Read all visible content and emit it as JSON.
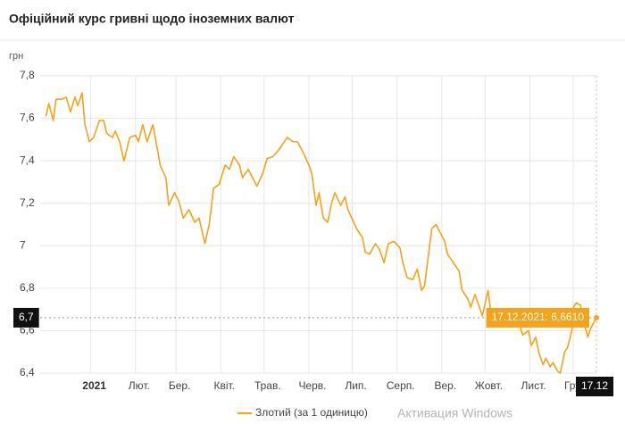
{
  "chart_data": {
    "type": "line",
    "title": "Офіційний курс гривні щодо іноземних валют",
    "y_label": "грн",
    "x": [
      "2020-12-01",
      "2020-12-03",
      "2020-12-06",
      "2020-12-08",
      "2020-12-12",
      "2020-12-15",
      "2020-12-18",
      "2020-12-21",
      "2020-12-23",
      "2020-12-26",
      "2020-12-28",
      "2020-12-31",
      "2021-01-03",
      "2021-01-07",
      "2021-01-10",
      "2021-01-12",
      "2021-01-16",
      "2021-01-18",
      "2021-01-21",
      "2021-01-24",
      "2021-01-28",
      "2021-02-01",
      "2021-02-03",
      "2021-02-06",
      "2021-02-09",
      "2021-02-13",
      "2021-02-16",
      "2021-02-18",
      "2021-02-22",
      "2021-02-24",
      "2021-02-28",
      "2021-03-03",
      "2021-03-06",
      "2021-03-10",
      "2021-03-14",
      "2021-03-17",
      "2021-03-21",
      "2021-03-24",
      "2021-03-27",
      "2021-03-31",
      "2021-04-04",
      "2021-04-07",
      "2021-04-10",
      "2021-04-14",
      "2021-04-16",
      "2021-04-20",
      "2021-04-23",
      "2021-04-26",
      "2021-04-30",
      "2021-05-03",
      "2021-05-07",
      "2021-05-11",
      "2021-05-15",
      "2021-05-17",
      "2021-05-21",
      "2021-05-24",
      "2021-05-28",
      "2021-06-01",
      "2021-06-03",
      "2021-06-06",
      "2021-06-08",
      "2021-06-11",
      "2021-06-14",
      "2021-06-17",
      "2021-06-19",
      "2021-06-23",
      "2021-06-26",
      "2021-06-28",
      "2021-07-02",
      "2021-07-04",
      "2021-07-08",
      "2021-07-10",
      "2021-07-13",
      "2021-07-17",
      "2021-07-20",
      "2021-07-23",
      "2021-07-26",
      "2021-07-30",
      "2021-08-03",
      "2021-08-05",
      "2021-08-08",
      "2021-08-12",
      "2021-08-15",
      "2021-08-18",
      "2021-08-20",
      "2021-08-23",
      "2021-08-25",
      "2021-08-28",
      "2021-08-31",
      "2021-09-03",
      "2021-09-05",
      "2021-09-09",
      "2021-09-13",
      "2021-09-15",
      "2021-09-19",
      "2021-09-21",
      "2021-09-24",
      "2021-09-26",
      "2021-09-29",
      "2021-10-03",
      "2021-10-05",
      "2021-10-09",
      "2021-10-12",
      "2021-10-16",
      "2021-10-20",
      "2021-10-24",
      "2021-10-27",
      "2021-10-31",
      "2021-11-02",
      "2021-11-05",
      "2021-11-07",
      "2021-11-10",
      "2021-11-12",
      "2021-11-15",
      "2021-11-17",
      "2021-11-20",
      "2021-11-22",
      "2021-11-25",
      "2021-11-27",
      "2021-11-30",
      "2021-12-01",
      "2021-12-03",
      "2021-12-06",
      "2021-12-08",
      "2021-12-11",
      "2021-12-13",
      "2021-12-17"
    ],
    "series": [
      {
        "name": "Злотий (за 1 одиницю)",
        "color": "#f5a31a",
        "values": [
          7.61,
          7.67,
          7.59,
          7.69,
          7.69,
          7.7,
          7.63,
          7.7,
          7.66,
          7.72,
          7.57,
          7.49,
          7.51,
          7.59,
          7.59,
          7.53,
          7.51,
          7.54,
          7.49,
          7.4,
          7.51,
          7.52,
          7.49,
          7.57,
          7.49,
          7.57,
          7.46,
          7.38,
          7.32,
          7.19,
          7.25,
          7.21,
          7.13,
          7.17,
          7.11,
          7.13,
          7.01,
          7.1,
          7.27,
          7.29,
          7.38,
          7.36,
          7.42,
          7.38,
          7.32,
          7.36,
          7.32,
          7.28,
          7.34,
          7.41,
          7.42,
          7.45,
          7.49,
          7.51,
          7.49,
          7.49,
          7.44,
          7.38,
          7.34,
          7.19,
          7.25,
          7.13,
          7.11,
          7.21,
          7.25,
          7.19,
          7.23,
          7.17,
          7.11,
          7.08,
          7.04,
          6.97,
          6.96,
          7.01,
          6.98,
          6.92,
          7.01,
          7.02,
          6.99,
          6.92,
          6.85,
          6.84,
          6.89,
          6.79,
          6.81,
          6.97,
          7.08,
          7.1,
          7.06,
          7.02,
          6.96,
          6.92,
          6.88,
          6.79,
          6.75,
          6.71,
          6.77,
          6.73,
          6.67,
          6.79,
          6.68,
          6.65,
          6.67,
          6.64,
          6.65,
          6.64,
          6.58,
          6.6,
          6.53,
          6.57,
          6.5,
          6.44,
          6.47,
          6.43,
          6.45,
          6.41,
          6.4,
          6.5,
          6.52,
          6.6,
          6.71,
          6.73,
          6.72,
          6.65,
          6.57,
          6.61,
          6.661
        ]
      }
    ],
    "xlim": [
      "2020-11-27",
      "2021-12-17"
    ],
    "xticks": [
      {
        "value": "2021-01-01",
        "label": "2021"
      },
      {
        "value": "2021-02-01",
        "label": "Лют."
      },
      {
        "value": "2021-03-01",
        "label": "Бер."
      },
      {
        "value": "2021-04-01",
        "label": "Квіт."
      },
      {
        "value": "2021-05-01",
        "label": "Трав."
      },
      {
        "value": "2021-06-01",
        "label": "Черв."
      },
      {
        "value": "2021-07-01",
        "label": "Лип."
      },
      {
        "value": "2021-08-01",
        "label": "Серп."
      },
      {
        "value": "2021-09-01",
        "label": "Вер."
      },
      {
        "value": "2021-10-01",
        "label": "Жовт."
      },
      {
        "value": "2021-11-01",
        "label": "Лист."
      },
      {
        "value": "2021-12-01",
        "label": "Груд."
      }
    ],
    "ylim": [
      6.4,
      7.8
    ],
    "yticks": [
      {
        "value": 6.4,
        "label": "6,4"
      },
      {
        "value": 6.6,
        "label": "6,6"
      },
      {
        "value": 6.8,
        "label": "6,8"
      },
      7,
      {
        "value": 7.2,
        "label": "7,2"
      },
      {
        "value": 7.4,
        "label": "7,4"
      },
      {
        "value": 7.6,
        "label": "7,6"
      },
      {
        "value": 7.8,
        "label": "7,8"
      }
    ],
    "grid": true,
    "tooltip": "17.12.2021: 6,6610",
    "crosshair_y_label": "6,7",
    "crosshair_x_label": "17.12"
  },
  "watermark": "Активация Windows"
}
